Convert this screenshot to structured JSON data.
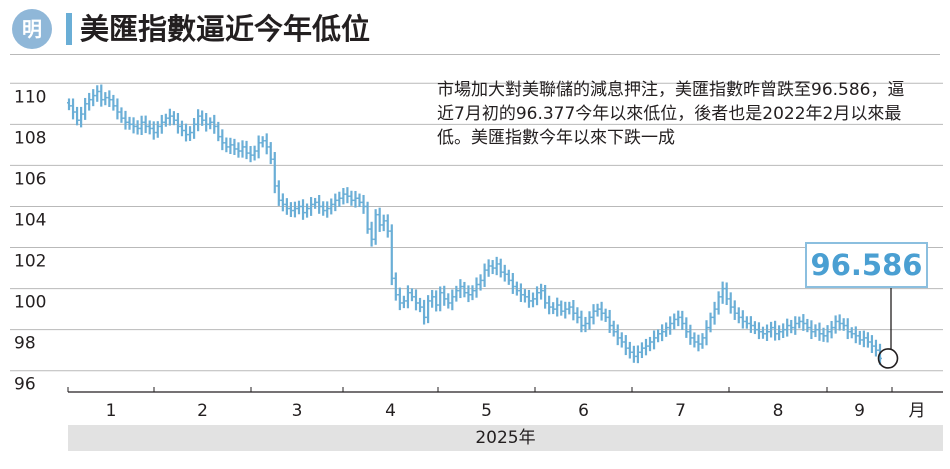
{
  "header": {
    "logo_text": "明",
    "title": "美匯指數逼近今年低位"
  },
  "annotation": "市場加大對美聯儲的減息押注，美匯指數昨曾跌至96.586，逼近7月初的96.377今年以來低位，後者也是2022年2月以來最低。美匯指數今年以來下跌一成",
  "callout_value": "96.586",
  "year_label": "2025年",
  "colors": {
    "bars": "#6aaed6",
    "accent": "#6aaed6",
    "callout_text": "#4a9fd2",
    "callout_border": "#8bbfdf",
    "year_bar": "#e2e2e2",
    "grid": "#b9b9b9",
    "logo": "#8fb7d8"
  },
  "chart_data": {
    "type": "ohlc",
    "y_ticks": [
      96,
      98,
      100,
      102,
      104,
      106,
      108,
      110
    ],
    "ylim": [
      95.5,
      110.5
    ],
    "grid": true,
    "x_tick_labels": [
      "1",
      "2",
      "3",
      "4",
      "5",
      "6",
      "7",
      "8",
      "9"
    ],
    "x_unit_label": "月",
    "daily_close": [
      108.9,
      108.6,
      108.2,
      108.5,
      109.0,
      109.2,
      109.4,
      109.6,
      109.2,
      109.3,
      109.2,
      108.9,
      108.6,
      108.3,
      108.1,
      108.0,
      107.9,
      107.8,
      108.1,
      107.9,
      107.8,
      107.6,
      107.9,
      108.1,
      108.3,
      108.4,
      108.2,
      107.9,
      107.7,
      107.5,
      107.6,
      108.0,
      108.4,
      108.2,
      108.0,
      108.1,
      107.9,
      107.4,
      107.1,
      106.9,
      107.0,
      106.8,
      106.7,
      106.9,
      106.6,
      106.5,
      106.7,
      107.1,
      107.2,
      106.9,
      106.3,
      105.0,
      104.3,
      104.1,
      103.9,
      103.8,
      103.9,
      104.0,
      103.7,
      103.9,
      104.1,
      104.2,
      104.0,
      103.8,
      103.9,
      104.1,
      104.3,
      104.4,
      104.6,
      104.5,
      104.3,
      104.4,
      104.2,
      104.0,
      102.9,
      102.4,
      103.6,
      103.1,
      103.3,
      102.8,
      100.5,
      99.7,
      99.3,
      99.4,
      99.8,
      99.6,
      99.3,
      99.1,
      98.6,
      99.4,
      99.6,
      99.2,
      99.8,
      99.5,
      99.3,
      99.6,
      99.9,
      100.1,
      99.8,
      99.7,
      99.9,
      100.2,
      100.4,
      100.9,
      101.1,
      101.0,
      101.2,
      100.8,
      100.7,
      100.4,
      100.1,
      99.9,
      99.7,
      99.6,
      99.4,
      99.5,
      99.8,
      99.9,
      99.3,
      99.1,
      99.0,
      99.2,
      98.9,
      99.0,
      99.1,
      98.8,
      98.6,
      98.2,
      98.3,
      98.6,
      98.9,
      99.0,
      98.8,
      98.6,
      98.2,
      97.9,
      97.6,
      97.4,
      97.1,
      96.9,
      96.7,
      96.9,
      97.1,
      97.2,
      97.4,
      97.6,
      97.8,
      97.9,
      98.1,
      98.3,
      98.5,
      98.6,
      98.3,
      97.9,
      97.6,
      97.4,
      97.3,
      97.6,
      98.1,
      98.6,
      99.0,
      99.6,
      100.0,
      99.5,
      99.1,
      98.8,
      98.6,
      98.4,
      98.3,
      98.2,
      98.0,
      97.9,
      97.8,
      97.9,
      98.1,
      97.8,
      97.9,
      98.0,
      98.2,
      98.1,
      98.3,
      98.4,
      98.3,
      98.1,
      97.9,
      98.0,
      97.8,
      97.7,
      97.9,
      98.1,
      98.4,
      98.3,
      98.2,
      97.9,
      97.8,
      97.7,
      97.5,
      97.6,
      97.4,
      97.2,
      97.0,
      96.6
    ]
  }
}
